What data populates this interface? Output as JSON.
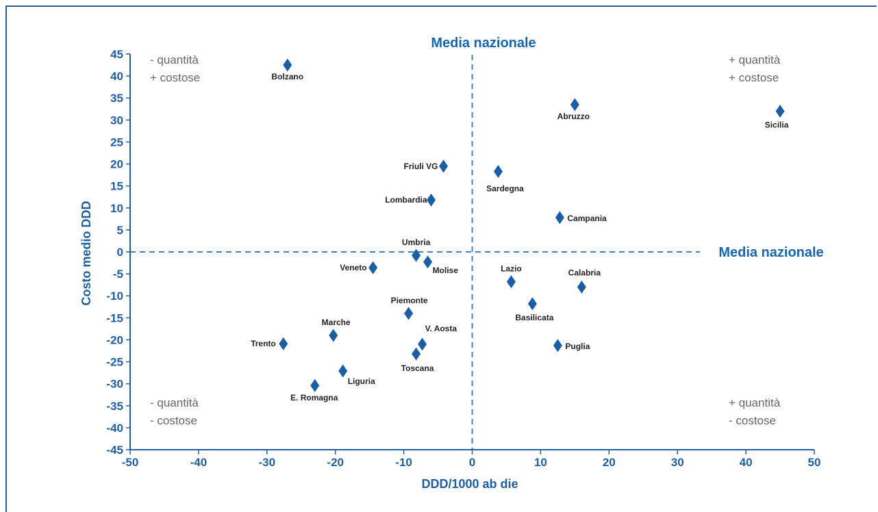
{
  "colors": {
    "axis": "#1f5fa0",
    "marker": "#1a5fa6",
    "reference_line": "#3b82c4",
    "quadrant_text": "#666666",
    "point_text": "#222222"
  },
  "reference_labels": {
    "vertical": "Media nazionale",
    "horizontal": "Media nazionale"
  },
  "quadrants": {
    "top_left": [
      "- quantità",
      "+ costose"
    ],
    "top_right": [
      "+ quantità",
      "+ costose"
    ],
    "bottom_left": [
      "- quantità",
      "- costose"
    ],
    "bottom_right": [
      "+ quantità",
      "- costose"
    ]
  },
  "chart_data": {
    "type": "scatter",
    "title": "",
    "xlabel": "DDD/1000 ab die",
    "ylabel": "Costo medio DDD",
    "xlim": [
      -50,
      50
    ],
    "ylim": [
      -45,
      45
    ],
    "xticks": [
      -50,
      -40,
      -30,
      -20,
      -10,
      0,
      10,
      20,
      30,
      40,
      50
    ],
    "yticks": [
      45,
      40,
      35,
      30,
      25,
      20,
      15,
      10,
      5,
      0,
      -5,
      -10,
      -15,
      -20,
      -25,
      -30,
      -35,
      -40,
      -45
    ],
    "marker": "diamond",
    "reference_lines": {
      "x": 0,
      "y": 0
    },
    "points": [
      {
        "label": "Bolzano",
        "x": -27,
        "y": 42.5
      },
      {
        "label": "Abruzzo",
        "x": 15,
        "y": 33.5
      },
      {
        "label": "Sicilia",
        "x": 45,
        "y": 32
      },
      {
        "label": "Friuli VG",
        "x": -4.2,
        "y": 19.5
      },
      {
        "label": "Sardegna",
        "x": 3.8,
        "y": 18.3
      },
      {
        "label": "Lombardia",
        "x": -6,
        "y": 11.8
      },
      {
        "label": "Campania",
        "x": 12.8,
        "y": 7.8
      },
      {
        "label": "Umbria",
        "x": -8.2,
        "y": -0.8
      },
      {
        "label": "Molise",
        "x": -6.5,
        "y": -2.3
      },
      {
        "label": "Veneto",
        "x": -14.5,
        "y": -3.6
      },
      {
        "label": "Lazio",
        "x": 5.7,
        "y": -6.8
      },
      {
        "label": "Calabria",
        "x": 16,
        "y": -8
      },
      {
        "label": "Basilicata",
        "x": 8.8,
        "y": -11.8
      },
      {
        "label": "Piemonte",
        "x": -9.3,
        "y": -14
      },
      {
        "label": "Marche",
        "x": -20.3,
        "y": -19
      },
      {
        "label": "Trento",
        "x": -27.6,
        "y": -20.9
      },
      {
        "label": "V. Aosta",
        "x": -7.3,
        "y": -21
      },
      {
        "label": "Puglia",
        "x": 12.5,
        "y": -21.3
      },
      {
        "label": "Toscana",
        "x": -8.2,
        "y": -23.2
      },
      {
        "label": "Liguria",
        "x": -18.9,
        "y": -27.1
      },
      {
        "label": "E. Romagna",
        "x": -23,
        "y": -30.4
      }
    ]
  }
}
